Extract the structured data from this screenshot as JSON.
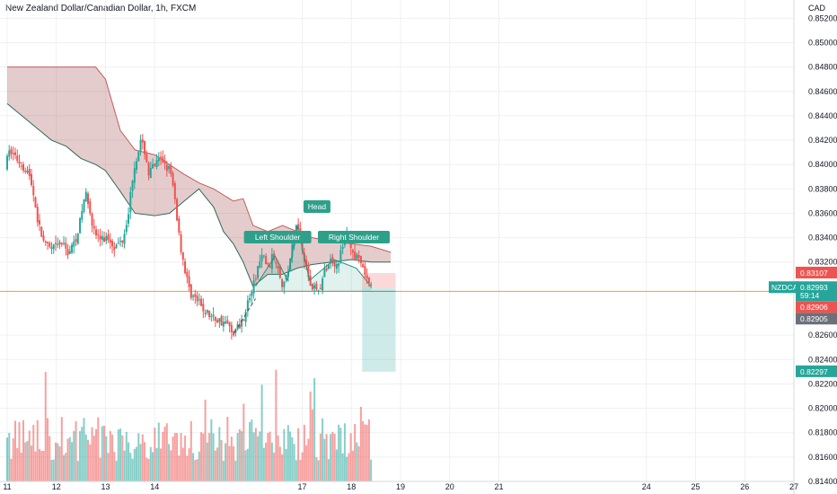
{
  "header": {
    "title": "New Zealand Dollar/Canadian Dollar, 1h, FXCM"
  },
  "axis": {
    "currency": "CAD"
  },
  "colors": {
    "up": "#26a69a",
    "down": "#ef5350",
    "cloud": "#a04848",
    "cloud_line": "#c65a5a",
    "base_line": "#2e6b58",
    "orange_line": "#f59d1e",
    "grid": "#eef0f3",
    "label": "#2ea08a"
  },
  "chart_data": {
    "type": "candlestick",
    "title": "New Zealand Dollar/Canadian Dollar, 1h, FXCM",
    "ylabel": "CAD",
    "ylim": [
      0.814,
      0.8535
    ],
    "xlim": [
      11.0,
      27.0
    ],
    "y_ticks": [
      "0.85200",
      "0.85000",
      "0.84800",
      "0.84600",
      "0.84400",
      "0.84200",
      "0.84000",
      "0.83800",
      "0.83600",
      "0.83400",
      "0.83200",
      "0.82600",
      "0.82400",
      "0.82200",
      "0.82000",
      "0.81800",
      "0.81600",
      "0.81400"
    ],
    "x_ticks": [
      {
        "v": 11,
        "label": "11"
      },
      {
        "v": 12,
        "label": "12"
      },
      {
        "v": 13,
        "label": "13"
      },
      {
        "v": 14,
        "label": "14"
      },
      {
        "v": 17,
        "label": "17"
      },
      {
        "v": 18,
        "label": "18"
      },
      {
        "v": 19,
        "label": "19"
      },
      {
        "v": 20,
        "label": "20"
      },
      {
        "v": 21,
        "label": "21"
      },
      {
        "v": 24,
        "label": "24"
      },
      {
        "v": 25,
        "label": "25"
      },
      {
        "v": 26,
        "label": "26"
      },
      {
        "v": 27,
        "label": "27"
      }
    ],
    "price_path": [
      [
        11.0,
        0.8398
      ],
      [
        11.1,
        0.8412
      ],
      [
        11.25,
        0.8404
      ],
      [
        11.45,
        0.8395
      ],
      [
        11.55,
        0.8382
      ],
      [
        11.68,
        0.835
      ],
      [
        11.82,
        0.8333
      ],
      [
        11.95,
        0.833
      ],
      [
        12.15,
        0.8335
      ],
      [
        12.28,
        0.8328
      ],
      [
        12.4,
        0.8335
      ],
      [
        12.52,
        0.8352
      ],
      [
        12.62,
        0.8376
      ],
      [
        12.7,
        0.837
      ],
      [
        12.8,
        0.8345
      ],
      [
        12.95,
        0.8338
      ],
      [
        13.1,
        0.834
      ],
      [
        13.25,
        0.8332
      ],
      [
        13.4,
        0.834
      ],
      [
        13.52,
        0.8365
      ],
      [
        13.6,
        0.8393
      ],
      [
        13.68,
        0.8408
      ],
      [
        13.75,
        0.8418
      ],
      [
        13.85,
        0.841
      ],
      [
        13.92,
        0.8392
      ],
      [
        14.05,
        0.84
      ],
      [
        14.2,
        0.8404
      ],
      [
        14.35,
        0.8395
      ],
      [
        14.45,
        0.8372
      ],
      [
        14.55,
        0.8338
      ],
      [
        14.65,
        0.8315
      ],
      [
        14.75,
        0.8296
      ],
      [
        14.9,
        0.8288
      ],
      [
        15.05,
        0.828
      ],
      [
        15.2,
        0.8275
      ],
      [
        15.35,
        0.8272
      ],
      [
        15.5,
        0.827
      ],
      [
        15.62,
        0.8262
      ],
      [
        15.7,
        0.8265
      ],
      [
        15.8,
        0.827
      ],
      [
        15.92,
        0.8285
      ],
      [
        16.05,
        0.83
      ],
      [
        16.15,
        0.8318
      ],
      [
        16.25,
        0.8325
      ],
      [
        16.35,
        0.8315
      ],
      [
        16.45,
        0.8325
      ],
      [
        16.55,
        0.8318
      ],
      [
        16.65,
        0.83
      ],
      [
        16.75,
        0.8312
      ],
      [
        16.85,
        0.8335
      ],
      [
        16.92,
        0.835
      ],
      [
        17.0,
        0.8342
      ],
      [
        17.08,
        0.8325
      ],
      [
        17.15,
        0.831
      ],
      [
        17.22,
        0.83
      ],
      [
        17.3,
        0.83
      ],
      [
        17.38,
        0.8295
      ],
      [
        17.45,
        0.8305
      ],
      [
        17.55,
        0.8318
      ],
      [
        17.65,
        0.8322
      ],
      [
        17.75,
        0.8318
      ],
      [
        17.85,
        0.833
      ],
      [
        17.95,
        0.8345
      ],
      [
        18.02,
        0.8335
      ],
      [
        18.1,
        0.8325
      ],
      [
        18.2,
        0.832
      ],
      [
        18.3,
        0.8312
      ],
      [
        18.4,
        0.83
      ]
    ],
    "ichimoku_cloud": {
      "x": [
        11.0,
        11.6,
        11.9,
        12.2,
        12.5,
        12.8,
        13.0,
        13.3,
        13.6,
        14.0,
        14.3,
        14.6,
        14.9,
        15.2,
        15.4,
        15.6,
        15.8,
        16.0,
        16.3,
        16.6,
        16.9,
        17.2,
        17.6,
        18.0,
        18.4,
        18.8
      ],
      "upper": [
        0.848,
        0.848,
        0.848,
        0.848,
        0.848,
        0.848,
        0.847,
        0.8428,
        0.8412,
        0.8408,
        0.84,
        0.8392,
        0.8385,
        0.838,
        0.8375,
        0.837,
        0.8372,
        0.835,
        0.8345,
        0.835,
        0.8345,
        0.834,
        0.8337,
        0.8335,
        0.8333,
        0.8328
      ],
      "lower": [
        0.845,
        0.843,
        0.842,
        0.8415,
        0.8405,
        0.84,
        0.8395,
        0.8378,
        0.836,
        0.8358,
        0.836,
        0.837,
        0.838,
        0.8365,
        0.8345,
        0.8335,
        0.832,
        0.83,
        0.831,
        0.831,
        0.8315,
        0.8318,
        0.832,
        0.8322,
        0.832,
        0.832
      ]
    },
    "pattern": {
      "name": "Head and Shoulders",
      "labels": [
        {
          "text": "Left Shoulder",
          "x": 16.5,
          "y": 0.8325
        },
        {
          "text": "Head",
          "x": 17.3,
          "y": 0.835
        },
        {
          "text": "Right Shoulder",
          "x": 18.05,
          "y": 0.8325
        }
      ],
      "zigzag": [
        [
          16.05,
          0.83
        ],
        [
          16.45,
          0.8325
        ],
        [
          16.7,
          0.8305
        ],
        [
          16.9,
          0.835
        ],
        [
          17.15,
          0.8305
        ],
        [
          17.65,
          0.8322
        ],
        [
          18.1,
          0.8315
        ],
        [
          18.4,
          0.83
        ]
      ],
      "neckline": 0.8296,
      "left_support": [
        [
          15.62,
          0.8262
        ],
        [
          16.05,
          0.829
        ]
      ]
    },
    "position": {
      "type": "short",
      "entry": 0.8299,
      "stop": 0.8311,
      "target": 0.823,
      "x_start": 18.22,
      "x_end": 18.9
    },
    "horizontal_line": 0.8296,
    "price_labels": {
      "symbol": "NZDCAD",
      "current": "0.82993",
      "countdown": "59:14",
      "stop": "0.83107",
      "bid": "0.82906",
      "ask": "0.82905",
      "target": "0.82297"
    },
    "volume_ylim": [
      0,
      100
    ]
  }
}
